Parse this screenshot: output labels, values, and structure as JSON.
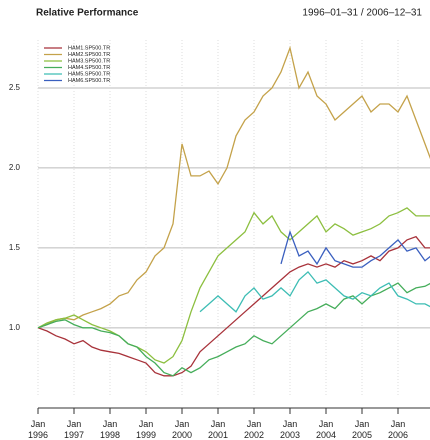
{
  "chart_data": {
    "type": "line",
    "title": "Relative Performance",
    "subtitle": "1996–01–31 / 2006–12–31",
    "x": [
      "1996-01",
      "1996-04",
      "1996-07",
      "1996-10",
      "1997-01",
      "1997-04",
      "1997-07",
      "1997-10",
      "1998-01",
      "1998-04",
      "1998-07",
      "1998-10",
      "1999-01",
      "1999-04",
      "1999-07",
      "1999-10",
      "2000-01",
      "2000-04",
      "2000-07",
      "2000-10",
      "2001-01",
      "2001-04",
      "2001-07",
      "2001-10",
      "2002-01",
      "2002-04",
      "2002-07",
      "2002-10",
      "2003-01",
      "2003-04",
      "2003-07",
      "2003-10",
      "2004-01",
      "2004-04",
      "2004-07",
      "2004-10",
      "2005-01",
      "2005-04",
      "2005-07",
      "2005-10",
      "2006-01",
      "2006-04",
      "2006-07",
      "2006-10",
      "2006-12"
    ],
    "xlim": [
      "1996-01",
      "2006-12"
    ],
    "xticks": [
      {
        "value": "1996-01",
        "label": "Jan 1996"
      },
      {
        "value": "1997-01",
        "label": "Jan 1997"
      },
      {
        "value": "1998-01",
        "label": "Jan 1998"
      },
      {
        "value": "1999-01",
        "label": "Jan 1999"
      },
      {
        "value": "2000-01",
        "label": "Jan 2000"
      },
      {
        "value": "2001-01",
        "label": "Jan 2001"
      },
      {
        "value": "2002-01",
        "label": "Jan 2002"
      },
      {
        "value": "2003-01",
        "label": "Jan 2003"
      },
      {
        "value": "2004-01",
        "label": "Jan 2004"
      },
      {
        "value": "2005-01",
        "label": "Jan 2005"
      },
      {
        "value": "2006-01",
        "label": "Jan 2006"
      }
    ],
    "ylim": [
      0.58,
      2.8
    ],
    "yticks": [
      {
        "value": 1,
        "label": "1.0"
      },
      {
        "value": 1.5,
        "label": "1.5"
      },
      {
        "value": 2,
        "label": "2.0"
      },
      {
        "value": 2.5,
        "label": "2.5"
      }
    ],
    "grid": true,
    "legend": "top-left",
    "series": [
      {
        "name": "HAM1.SP500.TR",
        "color": "#a8323a",
        "values": [
          1.0,
          0.98,
          0.95,
          0.93,
          0.9,
          0.92,
          0.88,
          0.86,
          0.85,
          0.84,
          0.82,
          0.8,
          0.78,
          0.72,
          0.7,
          0.7,
          0.72,
          0.76,
          0.85,
          0.9,
          0.95,
          1.0,
          1.05,
          1.1,
          1.15,
          1.2,
          1.25,
          1.3,
          1.35,
          1.38,
          1.4,
          1.38,
          1.4,
          1.38,
          1.42,
          1.4,
          1.42,
          1.45,
          1.42,
          1.48,
          1.5,
          1.55,
          1.57,
          1.5,
          1.5
        ]
      },
      {
        "name": "HAM2.SP500.TR",
        "color": "#c4a24a",
        "values": [
          1.0,
          1.02,
          1.05,
          1.06,
          1.05,
          1.08,
          1.1,
          1.12,
          1.15,
          1.2,
          1.22,
          1.3,
          1.35,
          1.45,
          1.5,
          1.65,
          2.15,
          1.95,
          1.95,
          1.98,
          1.9,
          2.0,
          2.2,
          2.3,
          2.35,
          2.45,
          2.5,
          2.6,
          2.75,
          2.5,
          2.6,
          2.45,
          2.4,
          2.3,
          2.35,
          2.4,
          2.45,
          2.35,
          2.4,
          2.4,
          2.35,
          2.45,
          2.3,
          2.15,
          2.05
        ]
      },
      {
        "name": "HAM3.SP500.TR",
        "color": "#8cbf3f",
        "values": [
          1.0,
          1.03,
          1.05,
          1.06,
          1.08,
          1.05,
          1.02,
          1.0,
          0.98,
          0.95,
          0.9,
          0.88,
          0.85,
          0.8,
          0.78,
          0.82,
          0.92,
          1.1,
          1.25,
          1.35,
          1.45,
          1.5,
          1.55,
          1.6,
          1.72,
          1.65,
          1.7,
          1.6,
          1.55,
          1.6,
          1.65,
          1.7,
          1.6,
          1.65,
          1.62,
          1.58,
          1.6,
          1.62,
          1.65,
          1.7,
          1.72,
          1.75,
          1.7,
          1.7,
          1.7
        ]
      },
      {
        "name": "HAM4.SP500.TR",
        "color": "#45ad5a",
        "values": [
          1.0,
          1.02,
          1.04,
          1.05,
          1.02,
          1.0,
          1.0,
          0.98,
          0.97,
          0.95,
          0.9,
          0.88,
          0.82,
          0.78,
          0.72,
          0.7,
          0.75,
          0.72,
          0.75,
          0.8,
          0.82,
          0.85,
          0.88,
          0.9,
          0.95,
          0.92,
          0.9,
          0.95,
          1.0,
          1.05,
          1.1,
          1.12,
          1.15,
          1.12,
          1.18,
          1.2,
          1.15,
          1.2,
          1.22,
          1.25,
          1.28,
          1.22,
          1.25,
          1.26,
          1.28
        ]
      },
      {
        "name": "HAM5.SP500.TR",
        "color": "#3dbdb4",
        "values": [
          null,
          null,
          null,
          null,
          null,
          null,
          null,
          null,
          null,
          null,
          null,
          null,
          null,
          null,
          null,
          null,
          null,
          null,
          1.1,
          1.15,
          1.2,
          1.15,
          1.1,
          1.2,
          1.25,
          1.18,
          1.2,
          1.25,
          1.2,
          1.3,
          1.35,
          1.28,
          1.3,
          1.25,
          1.2,
          1.18,
          1.22,
          1.2,
          1.25,
          1.28,
          1.2,
          1.18,
          1.15,
          1.15,
          1.13
        ]
      },
      {
        "name": "HAM6.SP500.TR",
        "color": "#3a5fbf",
        "values": [
          null,
          null,
          null,
          null,
          null,
          null,
          null,
          null,
          null,
          null,
          null,
          null,
          null,
          null,
          null,
          null,
          null,
          null,
          null,
          null,
          null,
          null,
          null,
          null,
          null,
          null,
          null,
          1.4,
          1.6,
          1.45,
          1.48,
          1.4,
          1.5,
          1.42,
          1.4,
          1.38,
          1.38,
          1.42,
          1.45,
          1.5,
          1.55,
          1.48,
          1.5,
          1.42,
          1.45
        ]
      }
    ]
  }
}
